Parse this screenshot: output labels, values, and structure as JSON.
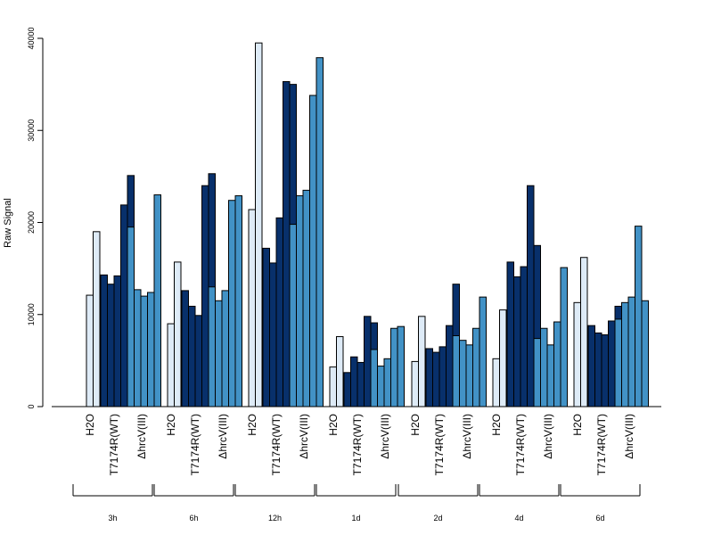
{
  "chart_data": {
    "type": "bar",
    "ylabel": "Raw Signal",
    "xlabel": "",
    "ylim": [
      0,
      40000
    ],
    "yticks": [
      0,
      10000,
      20000,
      30000,
      40000
    ],
    "conditions": [
      "H2O",
      "T7174R(WT)",
      "ΔhrcV(III)"
    ],
    "colors": [
      "#DEEBF7",
      "#08306B",
      "#4292C6"
    ],
    "groups": [
      {
        "time": "3h",
        "H2O": [
          12100,
          19000
        ],
        "T7174R(WT)": [
          14300,
          13300,
          14200,
          21900,
          25100
        ],
        "ΔhrcV(III)": [
          19500,
          12700,
          12000,
          12400,
          23000
        ]
      },
      {
        "time": "6h",
        "H2O": [
          9000,
          15700
        ],
        "T7174R(WT)": [
          12600,
          10900,
          9900,
          24000,
          25300
        ],
        "ΔhrcV(III)": [
          13000,
          11500,
          12600,
          22400,
          22900
        ]
      },
      {
        "time": "12h",
        "H2O": [
          21400,
          39500
        ],
        "T7174R(WT)": [
          17200,
          15600,
          20500,
          35300,
          35000
        ],
        "ΔhrcV(III)": [
          19800,
          22900,
          23500,
          33800,
          37900
        ]
      },
      {
        "time": "1d",
        "H2O": [
          4300,
          7600
        ],
        "T7174R(WT)": [
          3700,
          5400,
          4800,
          9800,
          9100
        ],
        "ΔhrcV(III)": [
          6200,
          4400,
          5200,
          8500,
          8700
        ]
      },
      {
        "time": "2d",
        "H2O": [
          4900,
          9800
        ],
        "T7174R(WT)": [
          6300,
          5900,
          6500,
          8800,
          13300
        ],
        "ΔhrcV(III)": [
          7700,
          7200,
          6700,
          8500,
          11900
        ]
      },
      {
        "time": "4d",
        "H2O": [
          5200,
          10500
        ],
        "T7174R(WT)": [
          15700,
          14100,
          15200,
          24000,
          17500
        ],
        "ΔhrcV(III)": [
          7400,
          8500,
          6700,
          9200,
          15100
        ]
      },
      {
        "time": "6d",
        "H2O": [
          11300,
          16200
        ],
        "T7174R(WT)": [
          8800,
          8000,
          7800,
          9300,
          10900
        ],
        "ΔhrcV(III)": [
          9500,
          11300,
          11900,
          19600,
          11500
        ]
      }
    ]
  }
}
